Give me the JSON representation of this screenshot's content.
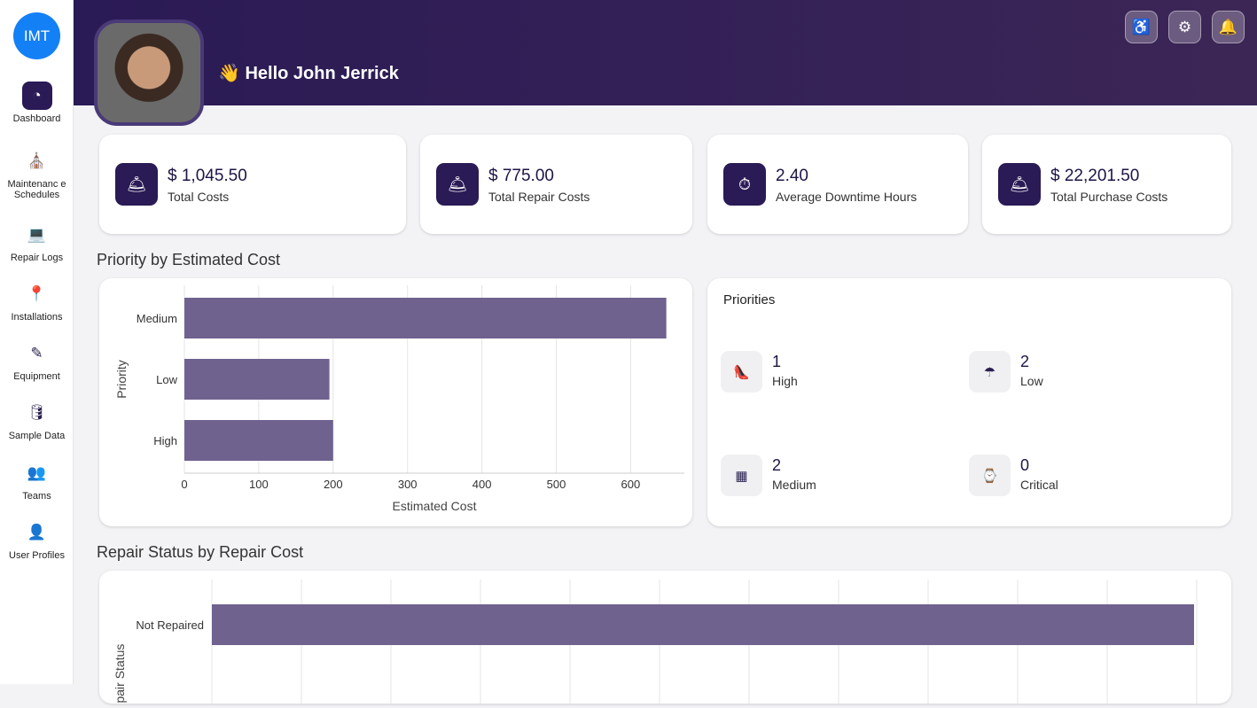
{
  "sidebar": {
    "logo": "IMT",
    "items": [
      {
        "label": "Dashboard",
        "icon": "gauge-icon",
        "glyph": "◔"
      },
      {
        "label": "Maintenanc e Schedules",
        "icon": "building-icon",
        "glyph": "⛪"
      },
      {
        "label": "Repair Logs",
        "icon": "laptop-icon",
        "glyph": "💻"
      },
      {
        "label": "Installations",
        "icon": "map-pin-icon",
        "glyph": "📍"
      },
      {
        "label": "Equipment",
        "icon": "edit-icon",
        "glyph": "✎"
      },
      {
        "label": "Sample Data",
        "icon": "database-icon",
        "glyph": "🛢"
      },
      {
        "label": "Teams",
        "icon": "people-icon",
        "glyph": "👥"
      },
      {
        "label": "User Profiles",
        "icon": "person-icon",
        "glyph": "👤"
      }
    ]
  },
  "header": {
    "greeting": "👋 Hello  John Jerrick",
    "icons": [
      "accessibility-icon",
      "gear-icon",
      "bell-icon"
    ]
  },
  "kpis": [
    {
      "value": "$ 1,045.50",
      "label": "Total Costs"
    },
    {
      "value": "$ 775.00",
      "label": "Total Repair Costs"
    },
    {
      "value": "2.40",
      "label": "Average Downtime Hours"
    },
    {
      "value": "$ 22,201.50",
      "label": "Total Purchase Costs"
    }
  ],
  "priorities": {
    "title": "Priorities",
    "items": [
      {
        "count": "1",
        "label": "High",
        "icon": "shoe-icon",
        "glyph": "👠"
      },
      {
        "count": "2",
        "label": "Low",
        "icon": "wifi-drop-icon",
        "glyph": "☂"
      },
      {
        "count": "2",
        "label": "Medium",
        "icon": "shapes-icon",
        "glyph": "▦"
      },
      {
        "count": "0",
        "label": "Critical",
        "icon": "watch-icon",
        "glyph": "⌚"
      }
    ]
  },
  "chart_data": [
    {
      "type": "bar",
      "orientation": "horizontal",
      "title": "Priority by Estimated Cost",
      "xlabel": "Estimated Cost",
      "ylabel": "Priority",
      "categories": [
        "Medium",
        "Low",
        "High"
      ],
      "values": [
        648,
        195,
        200
      ],
      "xlim": [
        0,
        670
      ],
      "xticks": [
        "0",
        "100",
        "200",
        "300",
        "400",
        "500",
        "600"
      ],
      "grid": true,
      "color": "#6f628f"
    },
    {
      "type": "bar",
      "orientation": "horizontal",
      "title": "Repair Status by Repair Cost",
      "ylabel": "Repair Status",
      "categories": [
        "Not Repaired"
      ],
      "values": [
        775
      ],
      "grid": true,
      "color": "#6f628f"
    }
  ]
}
